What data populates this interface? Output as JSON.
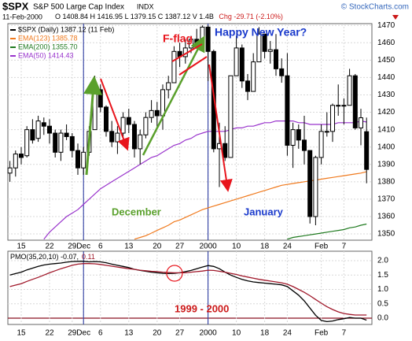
{
  "header": {
    "title": "$SPX",
    "subtitle": "S&P 500 Large Cap Index",
    "exchange": "INDX",
    "date": "11-Feb-2000",
    "quote": "O 1408.84  H 1416.95  L 1379.15  C 1387.12  V 1.4B",
    "change": "Chg -29.71 (-2.10%)",
    "copyright": "© StockCharts.com"
  },
  "chart_data": [
    {
      "type": "candlestick",
      "categories": [
        null,
        null,
        "15",
        null,
        null,
        null,
        null,
        "22",
        null,
        null,
        null,
        "29",
        null,
        "Dec",
        null,
        null,
        "6",
        null,
        null,
        null,
        null,
        "13",
        null,
        null,
        null,
        null,
        "20",
        null,
        null,
        null,
        "27",
        null,
        null,
        null,
        null,
        "2000",
        null,
        null,
        null,
        null,
        "10",
        null,
        null,
        null,
        null,
        "18",
        null,
        null,
        null,
        "24",
        null,
        null,
        null,
        null,
        null,
        "Feb",
        null,
        null,
        null,
        "7",
        null,
        null,
        null,
        null
      ],
      "ylim": [
        1346.4,
        1471
      ],
      "yticks": [
        1350,
        1360,
        1370,
        1380,
        1390,
        1400,
        1410,
        1420,
        1430,
        1440,
        1450,
        1460,
        1470
      ],
      "grid": true,
      "candles": {
        "name": "$SPX (Daily) 1387.12 (11 Feb)",
        "color": "#000000",
        "open": [
          1385,
          1388,
          1396,
          1395,
          1410,
          1405,
          1414,
          1412,
          1408,
          1397,
          1408,
          1406,
          1398,
          1388,
          1397,
          1410,
          1433,
          1423,
          1409,
          1403,
          1408,
          1417,
          1413,
          1399,
          1407,
          1417,
          1421,
          1418,
          1433,
          1437,
          1455,
          1452,
          1457,
          1462,
          1460,
          1469,
          1455,
          1399,
          1402,
          1394,
          1441,
          1457,
          1438,
          1432,
          1449,
          1465,
          1455,
          1456,
          1445,
          1441,
          1401,
          1410,
          1404,
          1398,
          1360,
          1394,
          1409,
          1409,
          1424,
          1424,
          1424,
          1441,
          1411,
          1408.84
        ],
        "high": [
          1392,
          1398,
          1400,
          1412,
          1416,
          1418,
          1417,
          1416,
          1410,
          1410,
          1413,
          1408,
          1402,
          1400,
          1412,
          1441,
          1436,
          1424,
          1415,
          1412,
          1420,
          1422,
          1415,
          1410,
          1420,
          1427,
          1426,
          1436,
          1441,
          1458,
          1460,
          1462,
          1464,
          1468,
          1470,
          1470,
          1456,
          1414,
          1412,
          1441,
          1464,
          1459,
          1442,
          1454,
          1469,
          1465,
          1461,
          1465,
          1451,
          1454,
          1414,
          1413,
          1418,
          1398,
          1395,
          1413,
          1420,
          1425,
          1436,
          1428,
          1445,
          1442,
          1422,
          1416.95
        ],
        "low": [
          1380,
          1383,
          1390,
          1394,
          1402,
          1403,
          1407,
          1402,
          1394,
          1392,
          1404,
          1394,
          1384,
          1384,
          1395,
          1410,
          1420,
          1406,
          1400,
          1396,
          1405,
          1408,
          1394,
          1390,
          1405,
          1414,
          1411,
          1410,
          1428,
          1437,
          1446,
          1448,
          1454,
          1457,
          1460,
          1438,
          1397,
          1377,
          1392,
          1394,
          1441,
          1434,
          1427,
          1432,
          1449,
          1451,
          1448,
          1441,
          1437,
          1395,
          1388,
          1399,
          1390,
          1356,
          1355,
          1390,
          1406,
          1403,
          1418,
          1413,
          1424,
          1410,
          1401,
          1379.15
        ],
        "close": [
          1388,
          1396,
          1394,
          1410,
          1404,
          1415,
          1412,
          1408,
          1397,
          1408,
          1406,
          1398,
          1388,
          1397,
          1409,
          1433,
          1423,
          1409,
          1403,
          1408,
          1417,
          1413,
          1399,
          1407,
          1417,
          1421,
          1418,
          1433,
          1437,
          1455,
          1452,
          1457,
          1462,
          1460,
          1469,
          1455,
          1399,
          1402,
          1394,
          1441,
          1457,
          1438,
          1432,
          1449,
          1465,
          1455,
          1456,
          1445,
          1441,
          1401,
          1410,
          1404,
          1398,
          1360,
          1394,
          1409,
          1409,
          1424,
          1424,
          1424,
          1441,
          1411,
          1416.83,
          1387.12
        ]
      },
      "series": [
        {
          "name": "EMA(123) 1385.78",
          "color": "#f07a1e",
          "values": [
            null,
            null,
            null,
            null,
            null,
            null,
            null,
            null,
            null,
            null,
            null,
            null,
            null,
            null,
            null,
            null,
            null,
            null,
            null,
            null,
            null,
            null,
            1347,
            1348,
            1349,
            1350.5,
            1352,
            1353.5,
            1355,
            1357,
            1358,
            1359.5,
            1361,
            1362.5,
            1364,
            1365,
            1366,
            1367,
            1368,
            1369,
            1370,
            1371,
            1372,
            1373,
            1374,
            1375,
            1376,
            1377,
            1378,
            1378.5,
            1379,
            1379.5,
            1380,
            1380.5,
            1381,
            1381.5,
            1382,
            1382.5,
            1383,
            1383.5,
            1384,
            1384.5,
            1385,
            1385.78
          ]
        },
        {
          "name": "EMA(200) 1355.70",
          "color": "#1f7a1f",
          "values": [
            null,
            null,
            null,
            null,
            null,
            null,
            null,
            null,
            null,
            null,
            null,
            null,
            null,
            null,
            null,
            null,
            null,
            null,
            null,
            null,
            null,
            null,
            null,
            null,
            null,
            null,
            null,
            null,
            null,
            null,
            null,
            null,
            null,
            null,
            null,
            null,
            null,
            null,
            null,
            null,
            null,
            null,
            null,
            null,
            null,
            null,
            null,
            null,
            null,
            1347,
            1348,
            1348.5,
            1349,
            1349.5,
            1350,
            1350.5,
            1351,
            1351.5,
            1352,
            1352.5,
            1353.5,
            1354,
            1355,
            1355.7
          ]
        },
        {
          "name": "EMA(50) 1414.43",
          "color": "#9933cc",
          "values": [
            null,
            null,
            null,
            null,
            null,
            null,
            1347,
            1351,
            1354,
            1357,
            1360,
            1362,
            1364,
            1367,
            1370,
            1373,
            1376,
            1378,
            1380,
            1382,
            1384,
            1386,
            1388,
            1390,
            1392,
            1394,
            1395,
            1397,
            1399,
            1401,
            1402,
            1404,
            1405,
            1407,
            1408,
            1409,
            1409,
            1409,
            1409,
            1410,
            1411,
            1411,
            1412,
            1412,
            1413,
            1414,
            1414,
            1415,
            1415,
            1415,
            1415,
            1414,
            1414,
            1413,
            1413,
            1413,
            1413,
            1413,
            1414,
            1414,
            1414,
            1414,
            1415,
            1414.43
          ]
        }
      ],
      "annotations": [
        {
          "text": "F-flag",
          "color": "#e8141c"
        },
        {
          "text": "Happy New Year?",
          "color": "#1a3acc"
        },
        {
          "text": "December",
          "color": "#5aa02c"
        },
        {
          "text": "January",
          "color": "#1a3acc"
        }
      ]
    },
    {
      "type": "line",
      "categories": [
        null,
        null,
        "15",
        null,
        null,
        null,
        null,
        "22",
        null,
        null,
        null,
        "29",
        null,
        "Dec",
        null,
        null,
        "6",
        null,
        null,
        null,
        null,
        "13",
        null,
        null,
        null,
        null,
        "20",
        null,
        null,
        null,
        "27",
        null,
        null,
        null,
        null,
        "2000",
        null,
        null,
        null,
        null,
        "10",
        null,
        null,
        null,
        null,
        "18",
        null,
        null,
        null,
        "24",
        null,
        null,
        null,
        null,
        null,
        "Feb",
        null,
        null,
        null,
        "7",
        null,
        null,
        null,
        null
      ],
      "ylim": [
        -0.22,
        2.33
      ],
      "yticks": [
        {
          "value": 0,
          "label": "0.0"
        },
        {
          "value": 0.5,
          "label": "0.5"
        },
        {
          "value": 1,
          "label": "1.0"
        },
        {
          "value": 1.5,
          "label": "1.5"
        },
        {
          "value": 2,
          "label": "2.0"
        }
      ],
      "grid": true,
      "series": [
        {
          "name": "PMO(35,20,10) -0.07,",
          "color": "#000000",
          "values": [
            1.5,
            1.55,
            1.6,
            1.68,
            1.74,
            1.8,
            1.85,
            1.88,
            1.9,
            1.92,
            1.95,
            1.97,
            1.98,
            1.98,
            1.96,
            1.97,
            1.96,
            1.93,
            1.88,
            1.84,
            1.8,
            1.76,
            1.7,
            1.66,
            1.63,
            1.6,
            1.58,
            1.56,
            1.55,
            1.56,
            1.58,
            1.62,
            1.66,
            1.72,
            1.78,
            1.83,
            1.8,
            1.72,
            1.6,
            1.5,
            1.42,
            1.35,
            1.3,
            1.26,
            1.24,
            1.22,
            1.2,
            1.18,
            1.16,
            1.1,
            0.95,
            0.8,
            0.6,
            0.35,
            0.1,
            -0.08,
            -0.12,
            -0.1,
            -0.05,
            -0.02,
            0.02,
            0,
            0,
            -0.07
          ]
        },
        {
          "name": "0.11",
          "color": "#a0182a",
          "values": [
            1.1,
            1.15,
            1.2,
            1.28,
            1.35,
            1.42,
            1.5,
            1.58,
            1.65,
            1.72,
            1.78,
            1.84,
            1.88,
            1.9,
            1.9,
            1.89,
            1.87,
            1.84,
            1.81,
            1.78,
            1.75,
            1.72,
            1.7,
            1.67,
            1.65,
            1.63,
            1.62,
            1.6,
            1.59,
            1.58,
            1.58,
            1.58,
            1.6,
            1.62,
            1.64,
            1.67,
            1.66,
            1.63,
            1.6,
            1.56,
            1.52,
            1.47,
            1.43,
            1.39,
            1.35,
            1.32,
            1.29,
            1.26,
            1.23,
            1.18,
            1.1,
            1,
            0.9,
            0.78,
            0.65,
            0.52,
            0.4,
            0.3,
            0.22,
            0.16,
            0.13,
            0.11,
            0.11,
            0.11
          ]
        }
      ],
      "annotations": [
        {
          "text": "1999 - 2000",
          "color": "#cc1a1a"
        }
      ]
    }
  ]
}
